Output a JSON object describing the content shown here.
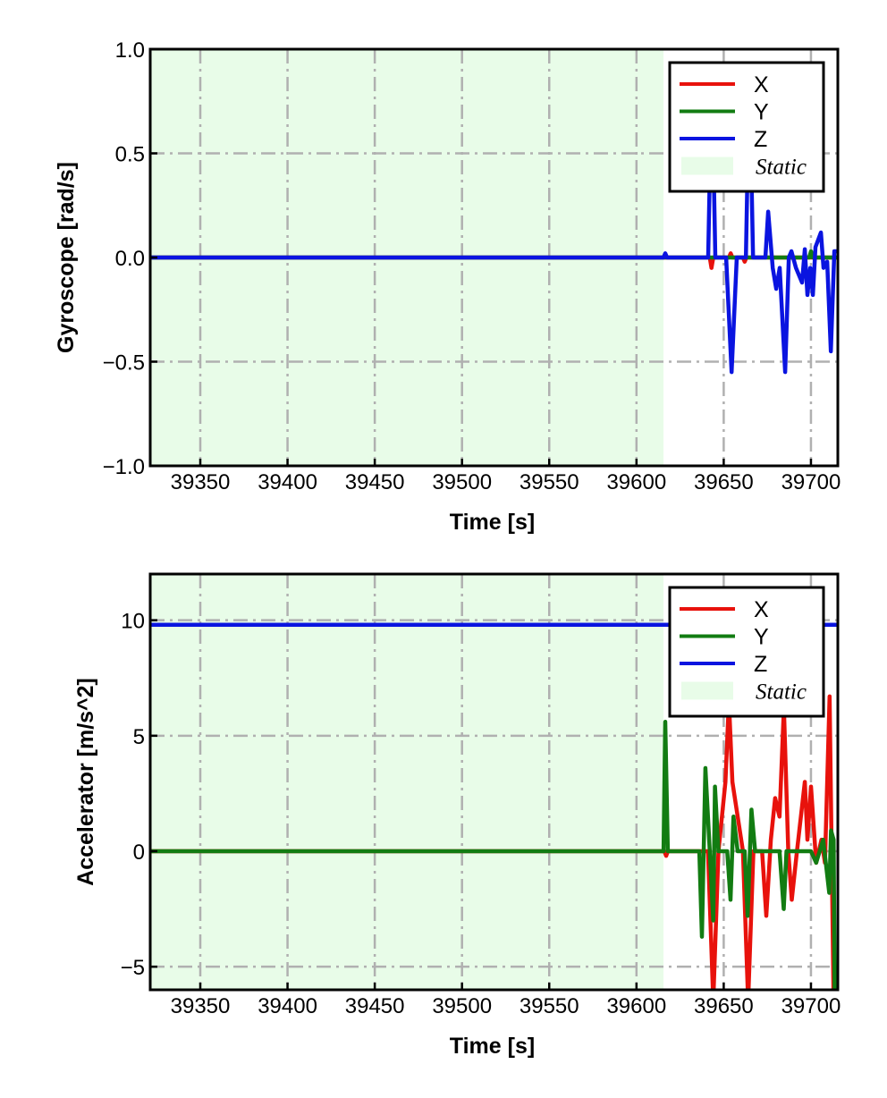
{
  "chart_data": [
    {
      "type": "line",
      "ylabel": "Gyroscope [rad/s]",
      "xlabel": "Time [s]",
      "xlim": [
        39321.3,
        39715.4
      ],
      "ylim": [
        -1.0,
        1.0
      ],
      "xticks": [
        39350,
        39400,
        39450,
        39500,
        39550,
        39600,
        39650,
        39700
      ],
      "xtick_labels": [
        "39350",
        "39400",
        "39450",
        "39500",
        "39550",
        "39600",
        "39650",
        "39700"
      ],
      "yticks": [
        1.0,
        0.5,
        0.0,
        -0.5,
        -1.0
      ],
      "ytick_labels": [
        "1.0",
        "0.5",
        "0.0",
        "−0.5",
        "−1.0"
      ],
      "grid": true,
      "static_region": [
        39321.3,
        39615.5
      ],
      "legend": {
        "placement": "top-right",
        "entries": [
          "X",
          "Y",
          "Z",
          "Static"
        ]
      },
      "series": [
        {
          "name": "X",
          "color": "#e8120c",
          "x": [
            39321.3,
            39642,
            39643,
            39644,
            39653,
            39654,
            39655,
            39661,
            39662,
            39663,
            39715.4
          ],
          "y": [
            0,
            0,
            -0.05,
            0,
            0,
            0.02,
            0,
            0,
            -0.02,
            0,
            0
          ]
        },
        {
          "name": "Y",
          "color": "#127c12",
          "x": [
            39321.3,
            39699,
            39700,
            39701,
            39715.4
          ],
          "y": [
            0,
            0,
            0.03,
            0,
            0
          ]
        },
        {
          "name": "Z",
          "color": "#0a14e0",
          "x": [
            39321.3,
            39615.5,
            39616.5,
            39617.5,
            39641.1,
            39643.2,
            39645.2,
            39649.3,
            39651.4,
            39654.5,
            39657.5,
            39662.7,
            39664.7,
            39666.8,
            39673.9,
            39675.5,
            39678.1,
            39680.1,
            39682.1,
            39685.2,
            39687.3,
            39688.8,
            39691.4,
            39694.9,
            39696.5,
            39698.0,
            39699.6,
            39701.1,
            39702.6,
            39705.7,
            39707.2,
            39709.3,
            39711.4,
            39713.4,
            39715.4
          ],
          "y": [
            0,
            0,
            0.02,
            0,
            0,
            0.9,
            0,
            0,
            0,
            -0.55,
            0,
            0,
            0.9,
            0,
            0,
            0.22,
            -0.05,
            -0.15,
            -0.05,
            -0.55,
            0,
            0.03,
            -0.05,
            -0.12,
            0.04,
            -0.18,
            -0.05,
            -0.18,
            0.05,
            0.12,
            -0.05,
            -0.02,
            -0.45,
            0.03,
            0.03
          ]
        }
      ]
    },
    {
      "type": "line",
      "ylabel": "Accelerator [m/s^2]",
      "xlabel": "Time [s]",
      "xlim": [
        39321.3,
        39715.4
      ],
      "ylim": [
        -6.0,
        12.0
      ],
      "xticks": [
        39350,
        39400,
        39450,
        39500,
        39550,
        39600,
        39650,
        39700
      ],
      "xtick_labels": [
        "39350",
        "39400",
        "39450",
        "39500",
        "39550",
        "39600",
        "39650",
        "39700"
      ],
      "yticks": [
        10,
        5,
        0,
        -5
      ],
      "ytick_labels": [
        "10",
        "5",
        "0",
        "−5"
      ],
      "grid": true,
      "static_region": [
        39321.3,
        39615.5
      ],
      "legend": {
        "placement": "top-right",
        "entries": [
          "X",
          "Y",
          "Z",
          "Static"
        ]
      },
      "series": [
        {
          "name": "X",
          "color": "#e8120c",
          "x": [
            39321.3,
            39616,
            39617,
            39618,
            39641,
            39644,
            39647,
            39651,
            39653,
            39655,
            39661,
            39664,
            39667,
            39672,
            39674.4,
            39677,
            39679.5,
            39682,
            39684.5,
            39687,
            39689,
            39692,
            39696.5,
            39698,
            39700,
            39703,
            39706,
            39708,
            39710.7,
            39713,
            39715.4
          ],
          "y": [
            0,
            0,
            -0.2,
            0,
            0,
            -6.5,
            0,
            3,
            6.5,
            3,
            0,
            -6.5,
            0,
            0,
            -2.8,
            0.5,
            2.3,
            1.5,
            6.2,
            0,
            -2.1,
            0,
            3.0,
            0.5,
            2.8,
            -0.5,
            0.5,
            -0.5,
            6.7,
            -6.5,
            -6.5
          ]
        },
        {
          "name": "Y",
          "color": "#127c12",
          "x": [
            39321.3,
            39615.5,
            39616.5,
            39618,
            39636,
            39637.5,
            39639.5,
            39642,
            39644,
            39645,
            39647,
            39652,
            39653.9,
            39655.6,
            39658,
            39662,
            39663.7,
            39665.9,
            39668,
            39682,
            39684.4,
            39686,
            39700,
            39703,
            39707,
            39710.5,
            39711.5,
            39713,
            39713.6,
            39715.4
          ],
          "y": [
            0,
            0,
            5.6,
            0,
            0,
            -3.7,
            3.6,
            0,
            -3.0,
            2.8,
            0,
            0,
            -2.1,
            1.5,
            0,
            0,
            -2.8,
            1.8,
            0,
            0,
            -2.5,
            0,
            0,
            -0.5,
            0.5,
            -1.8,
            0.9,
            0.5,
            -6.5,
            -6.5
          ]
        },
        {
          "name": "Z",
          "color": "#0a14e0",
          "x": [
            39321.3,
            39715.4
          ],
          "y": [
            9.8,
            9.8
          ]
        }
      ]
    }
  ]
}
